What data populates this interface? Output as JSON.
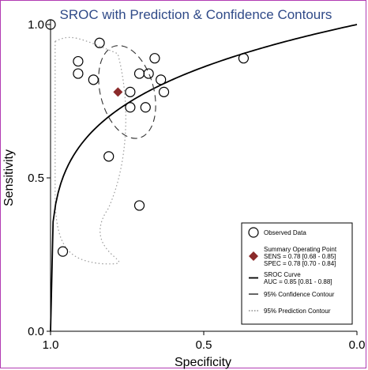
{
  "chart_data": {
    "type": "scatter",
    "title": "SROC with Prediction & Confidence Contours",
    "xlabel": "Specificity",
    "ylabel": "Sensitivity",
    "x_reversed": true,
    "xlim": [
      1.0,
      0.0
    ],
    "ylim": [
      0.0,
      1.0
    ],
    "x_ticks": [
      {
        "value": 1.0,
        "label": "1.0"
      },
      {
        "value": 0.5,
        "label": "0.5"
      },
      {
        "value": 0.0,
        "label": "0.0"
      }
    ],
    "y_ticks": [
      {
        "value": 0.0,
        "label": "0.0"
      },
      {
        "value": 0.5,
        "label": "0.5"
      },
      {
        "value": 1.0,
        "label": "1.0"
      }
    ],
    "grid": false,
    "observed": [
      {
        "spec": 1.0,
        "sens": 1.0
      },
      {
        "spec": 0.96,
        "sens": 0.26
      },
      {
        "spec": 0.91,
        "sens": 0.88
      },
      {
        "spec": 0.91,
        "sens": 0.84
      },
      {
        "spec": 0.86,
        "sens": 0.82
      },
      {
        "spec": 0.84,
        "sens": 0.94
      },
      {
        "spec": 0.81,
        "sens": 0.57
      },
      {
        "spec": 0.74,
        "sens": 0.73
      },
      {
        "spec": 0.74,
        "sens": 0.78
      },
      {
        "spec": 0.71,
        "sens": 0.41
      },
      {
        "spec": 0.71,
        "sens": 0.84
      },
      {
        "spec": 0.69,
        "sens": 0.73
      },
      {
        "spec": 0.68,
        "sens": 0.84
      },
      {
        "spec": 0.66,
        "sens": 0.89
      },
      {
        "spec": 0.64,
        "sens": 0.82
      },
      {
        "spec": 0.63,
        "sens": 0.78
      },
      {
        "spec": 0.37,
        "sens": 0.89
      }
    ],
    "summary_point": {
      "spec": 0.78,
      "sens": 0.78,
      "color": "#8b2a2a"
    },
    "sroc_curve_color": "#000000",
    "confidence_contour": {
      "center_spec": 0.75,
      "center_sens": 0.78,
      "semi_spec": 0.087,
      "semi_sens": 0.155,
      "tilt_deg": -15
    },
    "prediction_region": {
      "spec_range": [
        0.015,
        0.24
      ],
      "sens_range": [
        0.215,
        0.965
      ]
    },
    "legend": {
      "position": "bottom-right",
      "items": [
        {
          "symbol": "circle",
          "lines": [
            "Observed Data"
          ]
        },
        {
          "symbol": "diamond",
          "lines": [
            "Summary Operating Point",
            "SENS = 0.78 [0.68 - 0.85]",
            "SPEC = 0.78 [0.70 - 0.84]"
          ]
        },
        {
          "symbol": "solid-line",
          "lines": [
            "SROC Curve",
            "AUC = 0.85 [0.81 - 0.88]"
          ]
        },
        {
          "symbol": "dashed-line",
          "lines": [
            "95% Confidence Contour"
          ]
        },
        {
          "symbol": "dotted-line",
          "lines": [
            "95% Prediction Contour"
          ]
        }
      ]
    }
  }
}
